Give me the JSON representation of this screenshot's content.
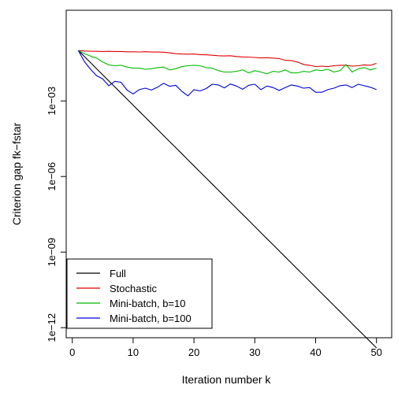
{
  "chart_data": {
    "type": "line",
    "title": "",
    "xlabel": "Iteration number k",
    "ylabel": "Criterion gap fk−fstar",
    "x_scale": "linear",
    "y_scale": "log10",
    "xlim": [
      -1.0,
      52.5
    ],
    "ylim_log10": [
      -12.4,
      0.6
    ],
    "x_ticks": [
      0,
      10,
      20,
      30,
      40,
      50
    ],
    "x_tick_labels": [
      "0",
      "10",
      "20",
      "30",
      "40",
      "50"
    ],
    "y_ticks_log10": [
      -3,
      -6,
      -9,
      -12
    ],
    "y_tick_labels": [
      "1e−03",
      "1e−06",
      "1e−09",
      "1e−12"
    ],
    "grid": false,
    "legend_position": "bottom-left",
    "x": [
      1,
      2,
      3,
      4,
      5,
      6,
      7,
      8,
      9,
      10,
      11,
      12,
      13,
      14,
      15,
      16,
      17,
      18,
      19,
      20,
      21,
      22,
      23,
      24,
      25,
      26,
      27,
      28,
      29,
      30,
      31,
      32,
      33,
      34,
      35,
      36,
      37,
      38,
      39,
      40,
      41,
      42,
      43,
      44,
      45,
      46,
      47,
      48,
      49,
      50
    ],
    "series": [
      {
        "name": "Full",
        "color": "#000000",
        "values": [
          0.1,
          0.0574,
          0.033,
          0.0189,
          0.0109,
          0.00624,
          0.00358,
          0.00206,
          0.00118,
          0.000679,
          0.00039,
          0.000224,
          0.000129,
          7.38e-05,
          4.24e-05,
          2.43e-05,
          1.4e-05,
          8.03e-06,
          4.61e-06,
          2.65e-06,
          1.52e-06,
          8.73e-07,
          5.01e-07,
          2.88e-07,
          1.65e-07,
          9.49e-08,
          5.45e-08,
          3.13e-08,
          1.8e-08,
          1.03e-08,
          5.93e-09,
          3.4e-09,
          1.95e-09,
          1.12e-09,
          6.45e-10,
          3.7e-10,
          2.13e-10,
          1.22e-10,
          7.01e-11,
          4.03e-11,
          2.31e-11,
          1.33e-11,
          7.62e-12,
          4.38e-12,
          2.51e-12,
          1.44e-12,
          8.29e-13,
          4.76e-13,
          2.73e-13,
          1.57e-13
        ]
      },
      {
        "name": "Stochastic",
        "color": "#df0000",
        "values": [
          0.1,
          0.096,
          0.094,
          0.093,
          0.092,
          0.093,
          0.092,
          0.092,
          0.089,
          0.089,
          0.088,
          0.09,
          0.087,
          0.088,
          0.086,
          0.081,
          0.075,
          0.073,
          0.072,
          0.073,
          0.069,
          0.068,
          0.065,
          0.062,
          0.061,
          0.062,
          0.058,
          0.056,
          0.055,
          0.053,
          0.051,
          0.052,
          0.05,
          0.048,
          0.041,
          0.04,
          0.035,
          0.028,
          0.026,
          0.023,
          0.024,
          0.023,
          0.025,
          0.026,
          0.026,
          0.024,
          0.025,
          0.027,
          0.026,
          0.031
        ]
      },
      {
        "name": "Mini-batch, b=10",
        "color": "#00bb00",
        "values": [
          0.1,
          0.075,
          0.06,
          0.05,
          0.035,
          0.027,
          0.025,
          0.026,
          0.022,
          0.02,
          0.02,
          0.018,
          0.019,
          0.021,
          0.022,
          0.017,
          0.019,
          0.023,
          0.025,
          0.026,
          0.025,
          0.021,
          0.02,
          0.016,
          0.014,
          0.014,
          0.015,
          0.017,
          0.013,
          0.016,
          0.014,
          0.012,
          0.015,
          0.014,
          0.017,
          0.013,
          0.013,
          0.015,
          0.014,
          0.017,
          0.016,
          0.018,
          0.014,
          0.016,
          0.028,
          0.014,
          0.019,
          0.021,
          0.017,
          0.02
        ]
      },
      {
        "name": "Mini-batch, b=100",
        "color": "#0000dd",
        "values": [
          0.1,
          0.036,
          0.018,
          0.01,
          0.0075,
          0.004,
          0.006,
          0.0055,
          0.0027,
          0.0019,
          0.0028,
          0.0032,
          0.0027,
          0.0035,
          0.005,
          0.0038,
          0.0042,
          0.0024,
          0.0016,
          0.0028,
          0.0025,
          0.0031,
          0.0046,
          0.0043,
          0.0033,
          0.0047,
          0.0039,
          0.0029,
          0.0042,
          0.0046,
          0.0028,
          0.0039,
          0.0034,
          0.0026,
          0.0034,
          0.0043,
          0.0039,
          0.0032,
          0.0034,
          0.0022,
          0.0022,
          0.0028,
          0.0032,
          0.004,
          0.0043,
          0.0034,
          0.0046,
          0.004,
          0.0035,
          0.0028
        ]
      }
    ]
  }
}
